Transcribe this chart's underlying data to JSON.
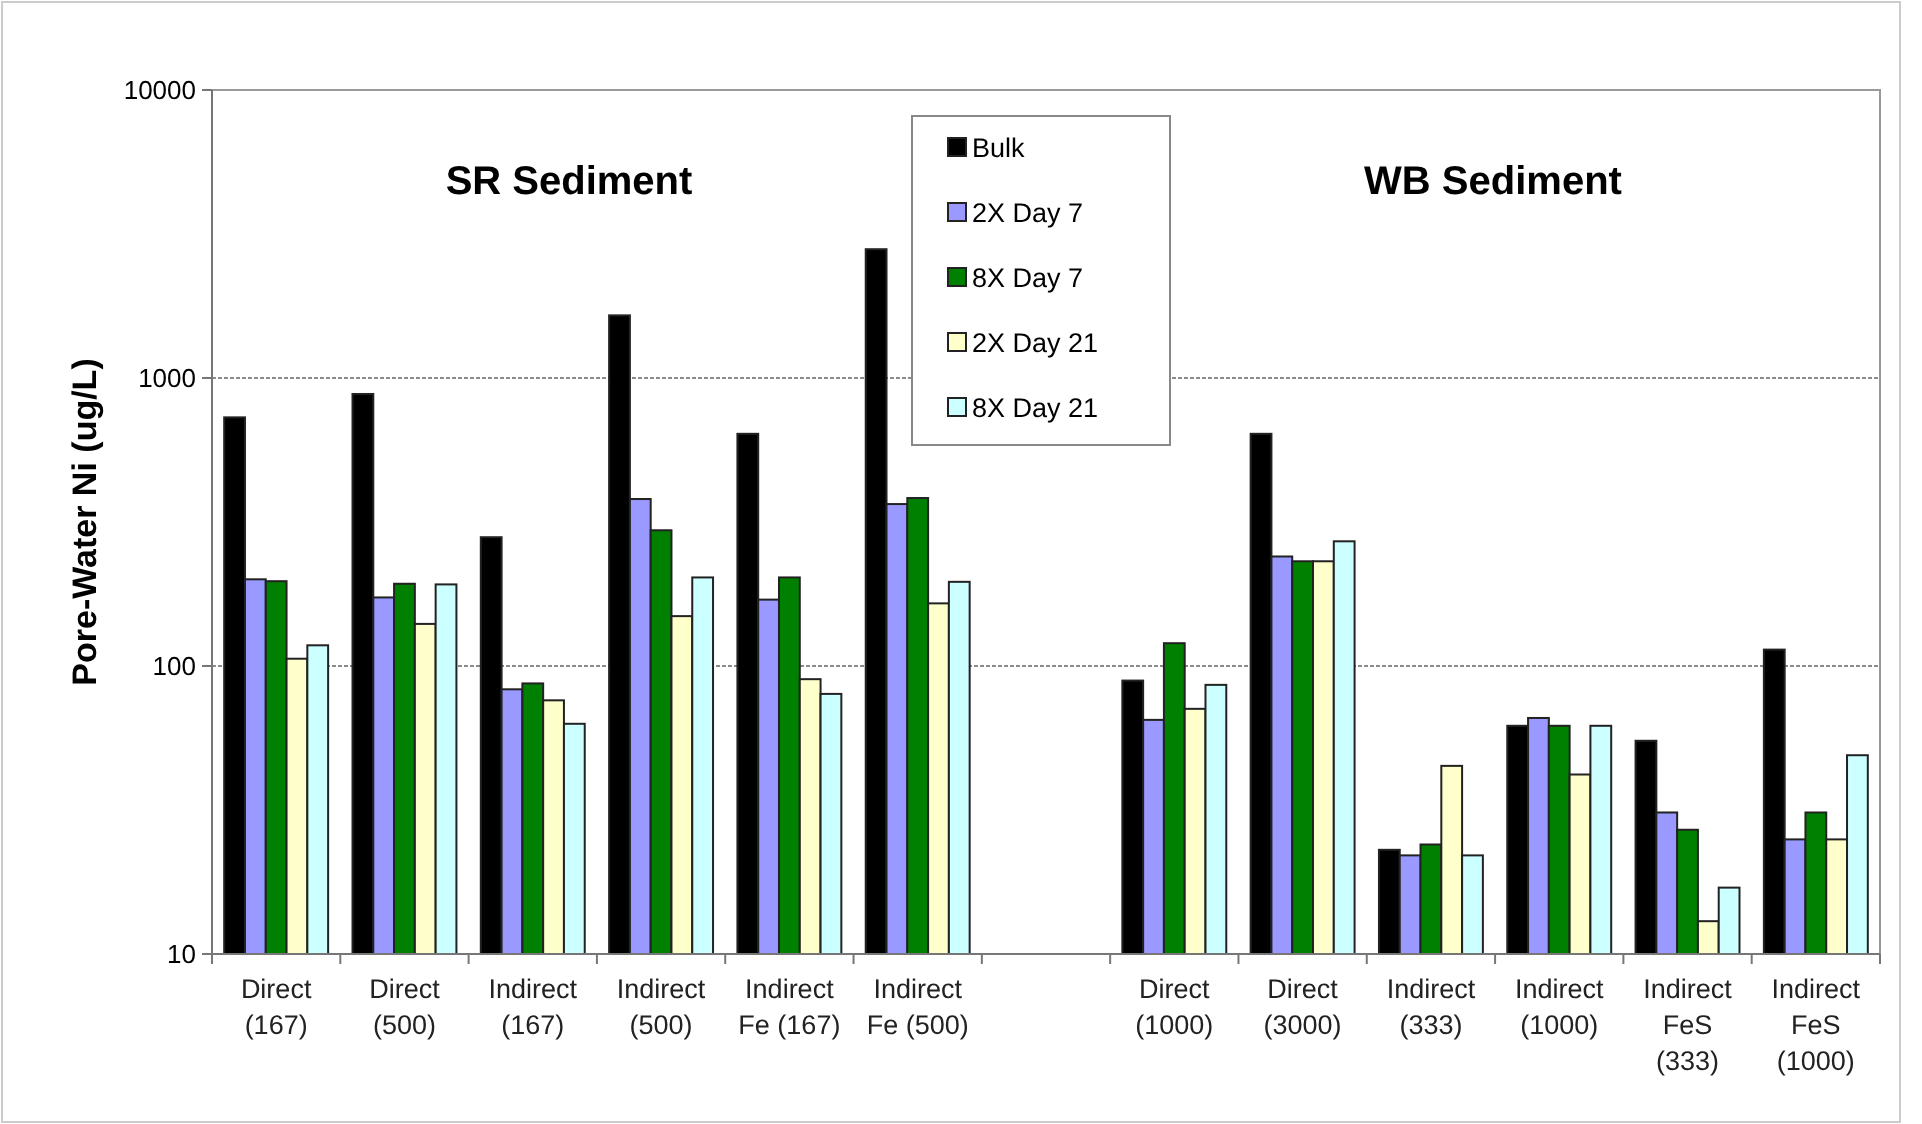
{
  "chart_data": {
    "type": "bar",
    "ylabel": "Pore-Water Ni (ug/L)",
    "log": true,
    "ylim": [
      10,
      10000
    ],
    "yticks": [
      10,
      100,
      1000,
      10000
    ],
    "grid": "y",
    "legend": "top",
    "annotations": [
      "SR Sediment",
      "WB Sediment"
    ],
    "categories": [
      "Direct\n(167)",
      "Direct\n(500)",
      "Indirect\n(167)",
      "Indirect\n(500)",
      "Indirect\nFe (167)",
      "Indirect\nFe (500)",
      null,
      "Direct\n(1000)",
      "Direct\n(3000)",
      "Indirect\n(333)",
      "Indirect\n(1000)",
      "Indirect\nFeS\n(333)",
      "Indirect\nFeS\n(1000)"
    ],
    "series": [
      {
        "name": "Bulk",
        "color": "#000000",
        "values": [
          730,
          880,
          280,
          1650,
          640,
          2800,
          null,
          89,
          640,
          23,
          62,
          55,
          114
        ]
      },
      {
        "name": "2X Day 7",
        "color": "#9999ff",
        "values": [
          200,
          173,
          83,
          380,
          170,
          365,
          null,
          65,
          240,
          22,
          66,
          31,
          25
        ]
      },
      {
        "name": "8X Day 7",
        "color": "#008000",
        "values": [
          197,
          193,
          87,
          296,
          203,
          383,
          null,
          120,
          231,
          24,
          62,
          27,
          31
        ]
      },
      {
        "name": "2X Day 21",
        "color": "#ffffcc",
        "values": [
          106,
          140,
          76,
          149,
          90,
          165,
          null,
          71,
          231,
          45,
          42,
          13,
          25
        ]
      },
      {
        "name": "8X Day 21",
        "color": "#ccffff",
        "values": [
          118,
          192,
          63,
          203,
          80,
          196,
          null,
          86,
          271,
          22,
          62,
          17,
          49
        ]
      }
    ]
  }
}
